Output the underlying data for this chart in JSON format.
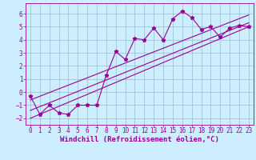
{
  "xlabel": "Windchill (Refroidissement éolien,°C)",
  "xlim": [
    -0.5,
    23.5
  ],
  "ylim": [
    -2.5,
    6.8
  ],
  "yticks": [
    -2,
    -1,
    0,
    1,
    2,
    3,
    4,
    5,
    6
  ],
  "xticks": [
    0,
    1,
    2,
    3,
    4,
    5,
    6,
    7,
    8,
    9,
    10,
    11,
    12,
    13,
    14,
    15,
    16,
    17,
    18,
    19,
    20,
    21,
    22,
    23
  ],
  "scatter_x": [
    0,
    1,
    2,
    3,
    4,
    5,
    6,
    7,
    8,
    9,
    10,
    11,
    12,
    13,
    14,
    15,
    16,
    17,
    18,
    19,
    20,
    21,
    22,
    23
  ],
  "scatter_y": [
    -0.3,
    -1.7,
    -1.0,
    -1.6,
    -1.7,
    -1.0,
    -1.0,
    -1.0,
    1.3,
    3.1,
    2.5,
    4.1,
    4.0,
    4.9,
    4.0,
    5.6,
    6.2,
    5.7,
    4.8,
    5.0,
    4.2,
    4.9,
    5.1,
    5.0
  ],
  "line1_x": [
    0,
    23
  ],
  "line1_y": [
    -2.0,
    5.0
  ],
  "line2_x": [
    0,
    23
  ],
  "line2_y": [
    -1.4,
    5.3
  ],
  "line3_x": [
    0,
    23
  ],
  "line3_y": [
    -0.6,
    5.9
  ],
  "color": "#990099",
  "bg_color": "#cceeff",
  "grid_color": "#99bbcc",
  "tick_fontsize": 5.5,
  "label_fontsize": 6.5
}
